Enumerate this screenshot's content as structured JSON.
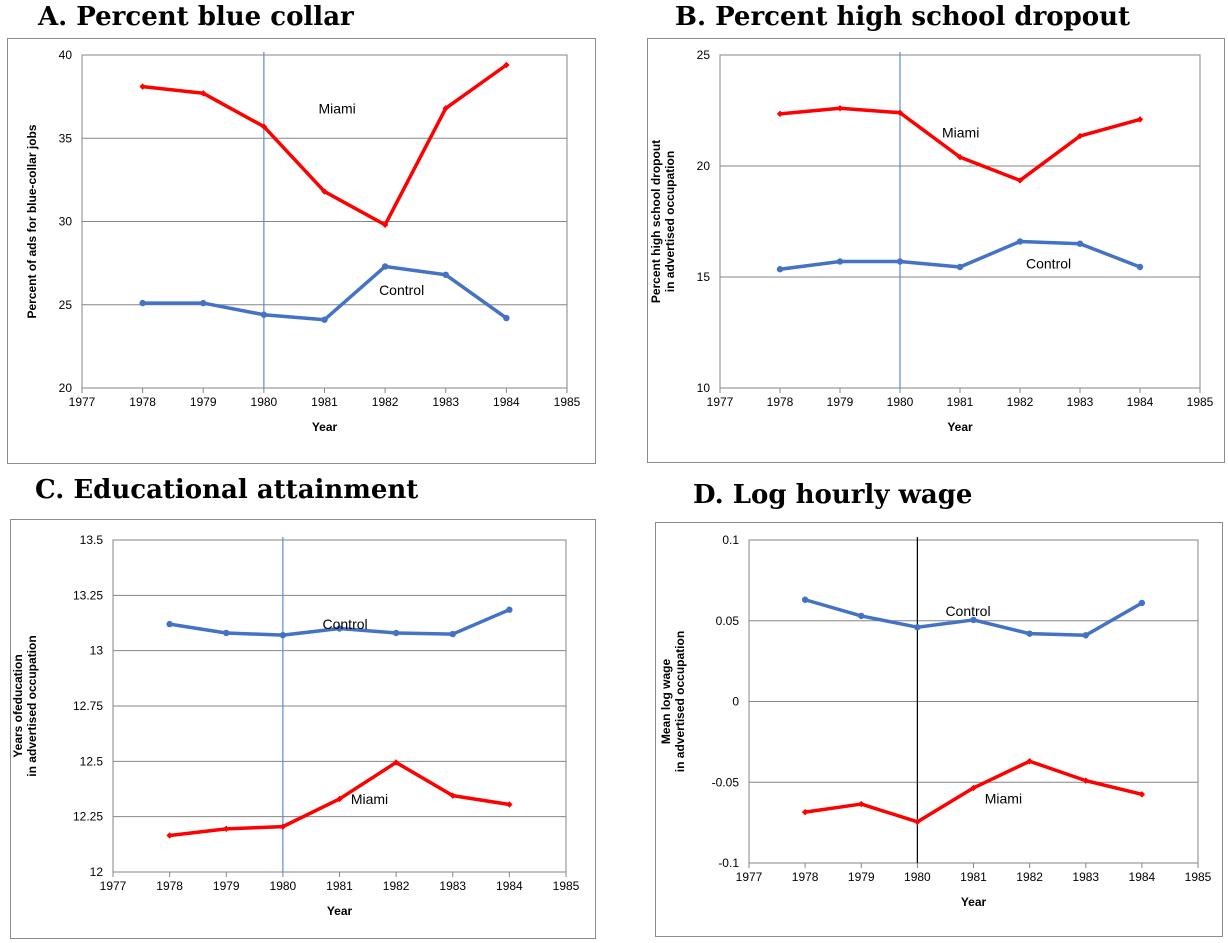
{
  "colors": {
    "miami": "#ff0000",
    "control": "#4472c4",
    "ref_line": "#5b8bd6",
    "ref_line_dark": "#000000",
    "grid": "#868686"
  },
  "chart_data": [
    {
      "id": "A",
      "type": "line",
      "title": "A.   Percent blue collar",
      "xlabel": "Year",
      "ylabel_lines": [
        "Percent of ads for blue-collar jobs"
      ],
      "xlim": [
        1977,
        1985
      ],
      "ylim": [
        20,
        40
      ],
      "yticks": [
        20,
        25,
        30,
        35,
        40
      ],
      "ytick_labels": [
        "20",
        "25",
        "30",
        "35",
        "40"
      ],
      "xticks": [
        1977,
        1978,
        1979,
        1980,
        1981,
        1982,
        1983,
        1984,
        1985
      ],
      "grid": true,
      "reference_x": 1980,
      "ref_color": "#5b8bd6",
      "x": [
        1978,
        1979,
        1980,
        1981,
        1982,
        1983,
        1984
      ],
      "series": [
        {
          "name": "Miami",
          "color": "#ff0000",
          "marker": "diamond",
          "values": [
            38.1,
            37.7,
            35.7,
            31.8,
            29.8,
            36.8,
            39.4
          ]
        },
        {
          "name": "Control",
          "color": "#4472c4",
          "marker": "circle",
          "values": [
            25.1,
            25.1,
            24.4,
            24.1,
            27.3,
            26.8,
            24.2
          ]
        }
      ],
      "labels": [
        {
          "text": "Miami",
          "x": 1980.9,
          "y": 36.8
        },
        {
          "text": "Control",
          "x": 1981.9,
          "y": 25.9
        }
      ]
    },
    {
      "id": "B",
      "type": "line",
      "title": "B.   Percent high school dropout",
      "xlabel": "Year",
      "ylabel_lines": [
        "Percent high school dropout",
        "in advertised occupation"
      ],
      "xlim": [
        1977,
        1985
      ],
      "ylim": [
        10,
        25
      ],
      "yticks": [
        10,
        15,
        20,
        25
      ],
      "ytick_labels": [
        "10",
        "15",
        "20",
        "25"
      ],
      "xticks": [
        1977,
        1978,
        1979,
        1980,
        1981,
        1982,
        1983,
        1984,
        1985
      ],
      "grid": true,
      "reference_x": 1980,
      "ref_color": "#5b8bd6",
      "x": [
        1978,
        1979,
        1980,
        1981,
        1982,
        1983,
        1984
      ],
      "series": [
        {
          "name": "Miami",
          "color": "#ff0000",
          "marker": "diamond",
          "values": [
            22.35,
            22.6,
            22.4,
            20.4,
            19.35,
            21.35,
            22.1
          ]
        },
        {
          "name": "Control",
          "color": "#4472c4",
          "marker": "circle",
          "values": [
            15.35,
            15.7,
            15.7,
            15.45,
            16.6,
            16.5,
            15.45
          ]
        }
      ],
      "labels": [
        {
          "text": "Miami",
          "x": 1980.7,
          "y": 21.5
        },
        {
          "text": "Control",
          "x": 1982.1,
          "y": 15.6
        }
      ]
    },
    {
      "id": "C",
      "type": "line",
      "title": "C.   Educational attainment",
      "xlabel": "Year",
      "ylabel_lines": [
        "Years ofeducation",
        "in advertised occupation"
      ],
      "xlim": [
        1977,
        1985
      ],
      "ylim": [
        12,
        13.5
      ],
      "yticks": [
        12,
        12.25,
        12.5,
        12.75,
        13,
        13.25,
        13.5
      ],
      "ytick_labels": [
        "12",
        "12.25",
        "12.5",
        "12.75",
        "13",
        "13.25",
        "13.5"
      ],
      "xticks": [
        1977,
        1978,
        1979,
        1980,
        1981,
        1982,
        1983,
        1984,
        1985
      ],
      "grid": true,
      "reference_x": 1980,
      "ref_color": "#5b8bd6",
      "x": [
        1978,
        1979,
        1980,
        1981,
        1982,
        1983,
        1984
      ],
      "series": [
        {
          "name": "Control",
          "color": "#4472c4",
          "marker": "circle",
          "values": [
            13.12,
            13.08,
            13.07,
            13.1,
            13.08,
            13.075,
            13.185
          ]
        },
        {
          "name": "Miami",
          "color": "#ff0000",
          "marker": "diamond",
          "values": [
            12.165,
            12.195,
            12.205,
            12.33,
            12.495,
            12.345,
            12.305
          ]
        }
      ],
      "labels": [
        {
          "text": "Control",
          "x": 1980.7,
          "y": 13.12
        },
        {
          "text": "Miami",
          "x": 1981.2,
          "y": 12.33
        }
      ]
    },
    {
      "id": "D",
      "type": "line",
      "title": "D.   Log hourly wage",
      "xlabel": "Year",
      "ylabel_lines": [
        "Mean log wage",
        "in advertised occupation"
      ],
      "xlim": [
        1977,
        1985
      ],
      "ylim": [
        -0.1,
        0.1
      ],
      "yticks": [
        -0.1,
        -0.05,
        0,
        0.05,
        0.1
      ],
      "ytick_labels": [
        "-0.1",
        "-0.05",
        "0",
        "0.05",
        "0.1"
      ],
      "xticks": [
        1977,
        1978,
        1979,
        1980,
        1981,
        1982,
        1983,
        1984,
        1985
      ],
      "grid": true,
      "reference_x": 1980,
      "ref_color": "#000000",
      "x": [
        1978,
        1979,
        1980,
        1981,
        1982,
        1983,
        1984
      ],
      "series": [
        {
          "name": "Control",
          "color": "#4472c4",
          "marker": "circle",
          "values": [
            0.063,
            0.053,
            0.046,
            0.0505,
            0.042,
            0.041,
            0.061
          ]
        },
        {
          "name": "Miami",
          "color": "#ff0000",
          "marker": "diamond",
          "values": [
            -0.0685,
            -0.0635,
            -0.0745,
            -0.0535,
            -0.037,
            -0.049,
            -0.0575
          ]
        }
      ],
      "labels": [
        {
          "text": "Control",
          "x": 1980.5,
          "y": 0.056
        },
        {
          "text": "Miami",
          "x": 1981.2,
          "y": -0.06
        }
      ]
    }
  ]
}
